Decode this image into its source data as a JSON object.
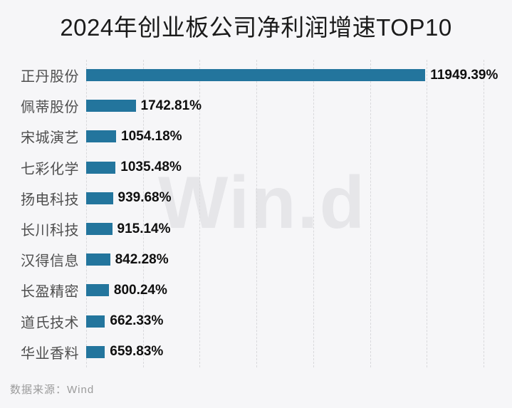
{
  "title": "2024年创业板公司净利润增速TOP10",
  "watermark": "Win.d",
  "footer": {
    "source_label": "数据来源：Wind"
  },
  "colors": {
    "background": "#f6f6f8",
    "bar": "#23759D",
    "title_text": "#1b1b1b",
    "category_text": "#4f4f4f",
    "value_text": "#0f0f0f",
    "gridline": "#d9d9dc",
    "watermark": "#e6e6e9",
    "source_text": "#9b9b9b"
  },
  "chart_data": {
    "type": "bar",
    "orientation": "horizontal",
    "title": "2024年创业板公司净利润增速TOP10",
    "categories": [
      "正丹股份",
      "佩蒂股份",
      "宋城演艺",
      "七彩化学",
      "扬电科技",
      "长川科技",
      "汉得信息",
      "长盈精密",
      "道氏技术",
      "华业香料"
    ],
    "values": [
      11949.39,
      1742.81,
      1054.18,
      1035.48,
      939.68,
      915.14,
      842.28,
      800.24,
      662.33,
      659.83
    ],
    "value_labels": [
      "11949.39%",
      "1742.81%",
      "1054.18%",
      "1035.48%",
      "939.68%",
      "915.14%",
      "842.28%",
      "800.24%",
      "662.33%",
      "659.83%"
    ],
    "xlabel": "",
    "ylabel": "",
    "xlim": [
      0,
      14000
    ],
    "gridline_step": 2000,
    "grid": "vertical-dashed",
    "legend": "none",
    "source": "数据来源：Wind"
  }
}
